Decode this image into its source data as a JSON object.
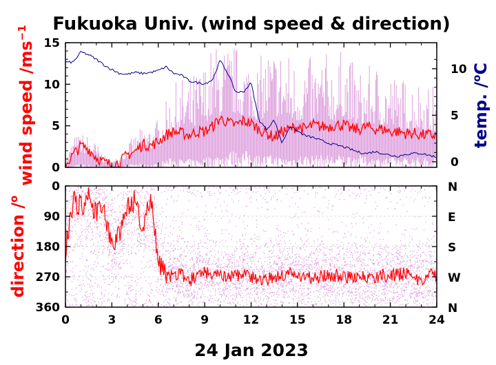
{
  "colors": {
    "speed_raw": "#dda0dd",
    "speed_mean": "#ff0000",
    "temp": "#00008b",
    "dir_raw": "#dda0dd",
    "dir_mean": "#ff0000",
    "grid": "#cccccc"
  },
  "chart_data": [
    {
      "type": "line",
      "title": "Fukuoka Univ. (wind speed & direction)",
      "xlabel": "",
      "ylabel": "wind speed /ms",
      "ylabel_sup": "−1",
      "y2label": "temp. /",
      "y2label_sup": "o",
      "y2label_unit": "C",
      "xlim": [
        0,
        24
      ],
      "ylim": [
        0,
        15
      ],
      "y2lim": [
        -0.6,
        12.8
      ],
      "x_ticks": [
        "0",
        "3",
        "6",
        "9",
        "12",
        "15",
        "18",
        "21",
        "24"
      ],
      "y_ticks": [
        "0",
        "5",
        "10",
        "15"
      ],
      "y2_ticks": [
        "0",
        "5",
        "10"
      ],
      "series": [
        {
          "key": "speed_raw",
          "x": [
            0,
            0.5,
            1,
            1.5,
            2,
            2.5,
            3,
            3.5,
            4,
            4.5,
            5,
            5.5,
            6,
            6.5,
            7,
            7.5,
            8,
            8.5,
            9,
            9.5,
            10,
            10.5,
            11,
            11.5,
            12,
            12.5,
            13,
            13.5,
            14,
            14.5,
            15,
            15.5,
            16,
            16.5,
            17,
            17.5,
            18,
            18.5,
            19,
            19.5,
            20,
            20.5,
            21,
            21.5,
            22,
            22.5,
            23,
            23.5,
            24
          ],
          "low": [
            0,
            0.2,
            0.5,
            0.3,
            0.2,
            0.1,
            0,
            0,
            0.3,
            0.5,
            0.4,
            0.3,
            0.5,
            1,
            1.2,
            1,
            1,
            1,
            1.2,
            1.5,
            1.5,
            2,
            2,
            2,
            2,
            1.5,
            1.5,
            1.5,
            1.2,
            1.2,
            1.5,
            1.5,
            1.5,
            1.5,
            1.5,
            1.5,
            1.5,
            1.5,
            1.5,
            1.2,
            1.2,
            1.2,
            1.2,
            1.2,
            1.2,
            1.2,
            1.2,
            1.2,
            1.2
          ],
          "high": [
            1,
            3.8,
            4.2,
            4,
            3,
            1.5,
            0.8,
            1.5,
            3,
            4,
            5,
            5.5,
            6,
            8,
            10,
            11,
            11,
            12,
            13,
            15,
            15,
            15,
            15,
            14,
            14,
            13,
            15,
            15,
            15,
            14,
            13,
            14,
            13,
            14,
            14,
            13,
            15,
            13,
            12,
            12,
            13,
            12,
            12,
            11,
            11,
            11,
            11,
            10,
            10
          ]
        },
        {
          "key": "speed_mean",
          "x": [
            0,
            0.5,
            1,
            1.5,
            2,
            2.5,
            3,
            3.5,
            4,
            4.5,
            5,
            5.5,
            6,
            6.5,
            7,
            7.5,
            8,
            8.5,
            9,
            9.5,
            10,
            10.5,
            11,
            11.5,
            12,
            12.5,
            13,
            13.5,
            14,
            14.5,
            15,
            15.5,
            16,
            16.5,
            17,
            17.5,
            18,
            18.5,
            19,
            19.5,
            20,
            20.5,
            21,
            21.5,
            22,
            22.5,
            23,
            23.5,
            24
          ],
          "values": [
            0.3,
            1.5,
            2.6,
            2.2,
            1.2,
            0.6,
            0.3,
            0.6,
            1.5,
            1.9,
            2.8,
            2.6,
            3.1,
            3.9,
            4.3,
            4.1,
            3.9,
            4.3,
            4.3,
            4.9,
            5.9,
            5.4,
            5.1,
            5.6,
            5.3,
            4.6,
            4.1,
            3.6,
            4.3,
            4.6,
            4.9,
            4.6,
            5.1,
            4.9,
            4.9,
            5.1,
            5.1,
            4.6,
            4.6,
            4.9,
            4.6,
            4.6,
            4.3,
            4.3,
            4.1,
            4.1,
            3.9,
            3.9,
            3.8
          ]
        },
        {
          "key": "temp",
          "axis": "y2",
          "x": [
            0,
            0.5,
            1,
            1.5,
            2,
            2.5,
            3,
            3.5,
            4,
            4.5,
            5,
            5.5,
            6,
            6.5,
            7,
            7.5,
            8,
            8.5,
            9,
            9.5,
            10,
            10.5,
            11,
            11.5,
            12,
            12.5,
            13,
            13.5,
            14,
            14.5,
            15,
            15.5,
            16,
            16.5,
            17,
            17.5,
            18,
            18.5,
            19,
            19.5,
            20,
            20.5,
            21,
            21.5,
            22,
            22.5,
            23,
            23.5,
            24
          ],
          "values": [
            10.7,
            10.7,
            11.8,
            11.5,
            11,
            10.4,
            9.9,
            9.5,
            9.4,
            9.6,
            9.5,
            9.6,
            9.8,
            10.2,
            9.5,
            9.3,
            8.7,
            8.5,
            8.4,
            8.8,
            10.9,
            9.5,
            7.5,
            7.5,
            8.5,
            4.5,
            3.5,
            4.5,
            2.0,
            3.8,
            3.3,
            2.8,
            2.6,
            2.3,
            2.0,
            1.8,
            1.6,
            1.3,
            1.0,
            0.9,
            1.1,
            0.9,
            0.7,
            0.6,
            0.8,
            0.9,
            0.9,
            0.7,
            0.5
          ]
        }
      ]
    },
    {
      "type": "scatter",
      "xlabel": "24 Jan 2023",
      "ylabel": "direction /",
      "ylabel_sup": "o",
      "xlim": [
        0,
        24
      ],
      "ylim": [
        360,
        0
      ],
      "x_ticks": [
        "0",
        "3",
        "6",
        "9",
        "12",
        "15",
        "18",
        "21",
        "24"
      ],
      "y_ticks": [
        "0",
        "90",
        "180",
        "270",
        "360"
      ],
      "y_tick_values": [
        0,
        90,
        180,
        270,
        360
      ],
      "y2_ticks": [
        "N",
        "E",
        "S",
        "W",
        "N"
      ],
      "series": [
        {
          "key": "dir_mean",
          "x": [
            0,
            0.5,
            1,
            1.5,
            2,
            2.5,
            3,
            3.5,
            4,
            4.5,
            5,
            5.5,
            6,
            6.5,
            7,
            7.5,
            8,
            8.5,
            9,
            9.5,
            10,
            10.5,
            11,
            11.5,
            12,
            12.5,
            13,
            13.5,
            14,
            14.5,
            15,
            15.5,
            16,
            16.5,
            17,
            17.5,
            18,
            18.5,
            19,
            19.5,
            20,
            20.5,
            21,
            21.5,
            22,
            22.5,
            23,
            23.5,
            24
          ],
          "values": [
            200,
            40,
            60,
            30,
            80,
            70,
            180,
            150,
            70,
            40,
            120,
            30,
            230,
            270,
            265,
            260,
            280,
            270,
            255,
            265,
            270,
            275,
            270,
            262,
            270,
            275,
            280,
            270,
            265,
            260,
            270,
            268,
            272,
            270,
            268,
            265,
            270,
            272,
            268,
            270,
            272,
            265,
            270,
            262,
            260,
            275,
            280,
            265,
            270
          ]
        }
      ]
    }
  ]
}
